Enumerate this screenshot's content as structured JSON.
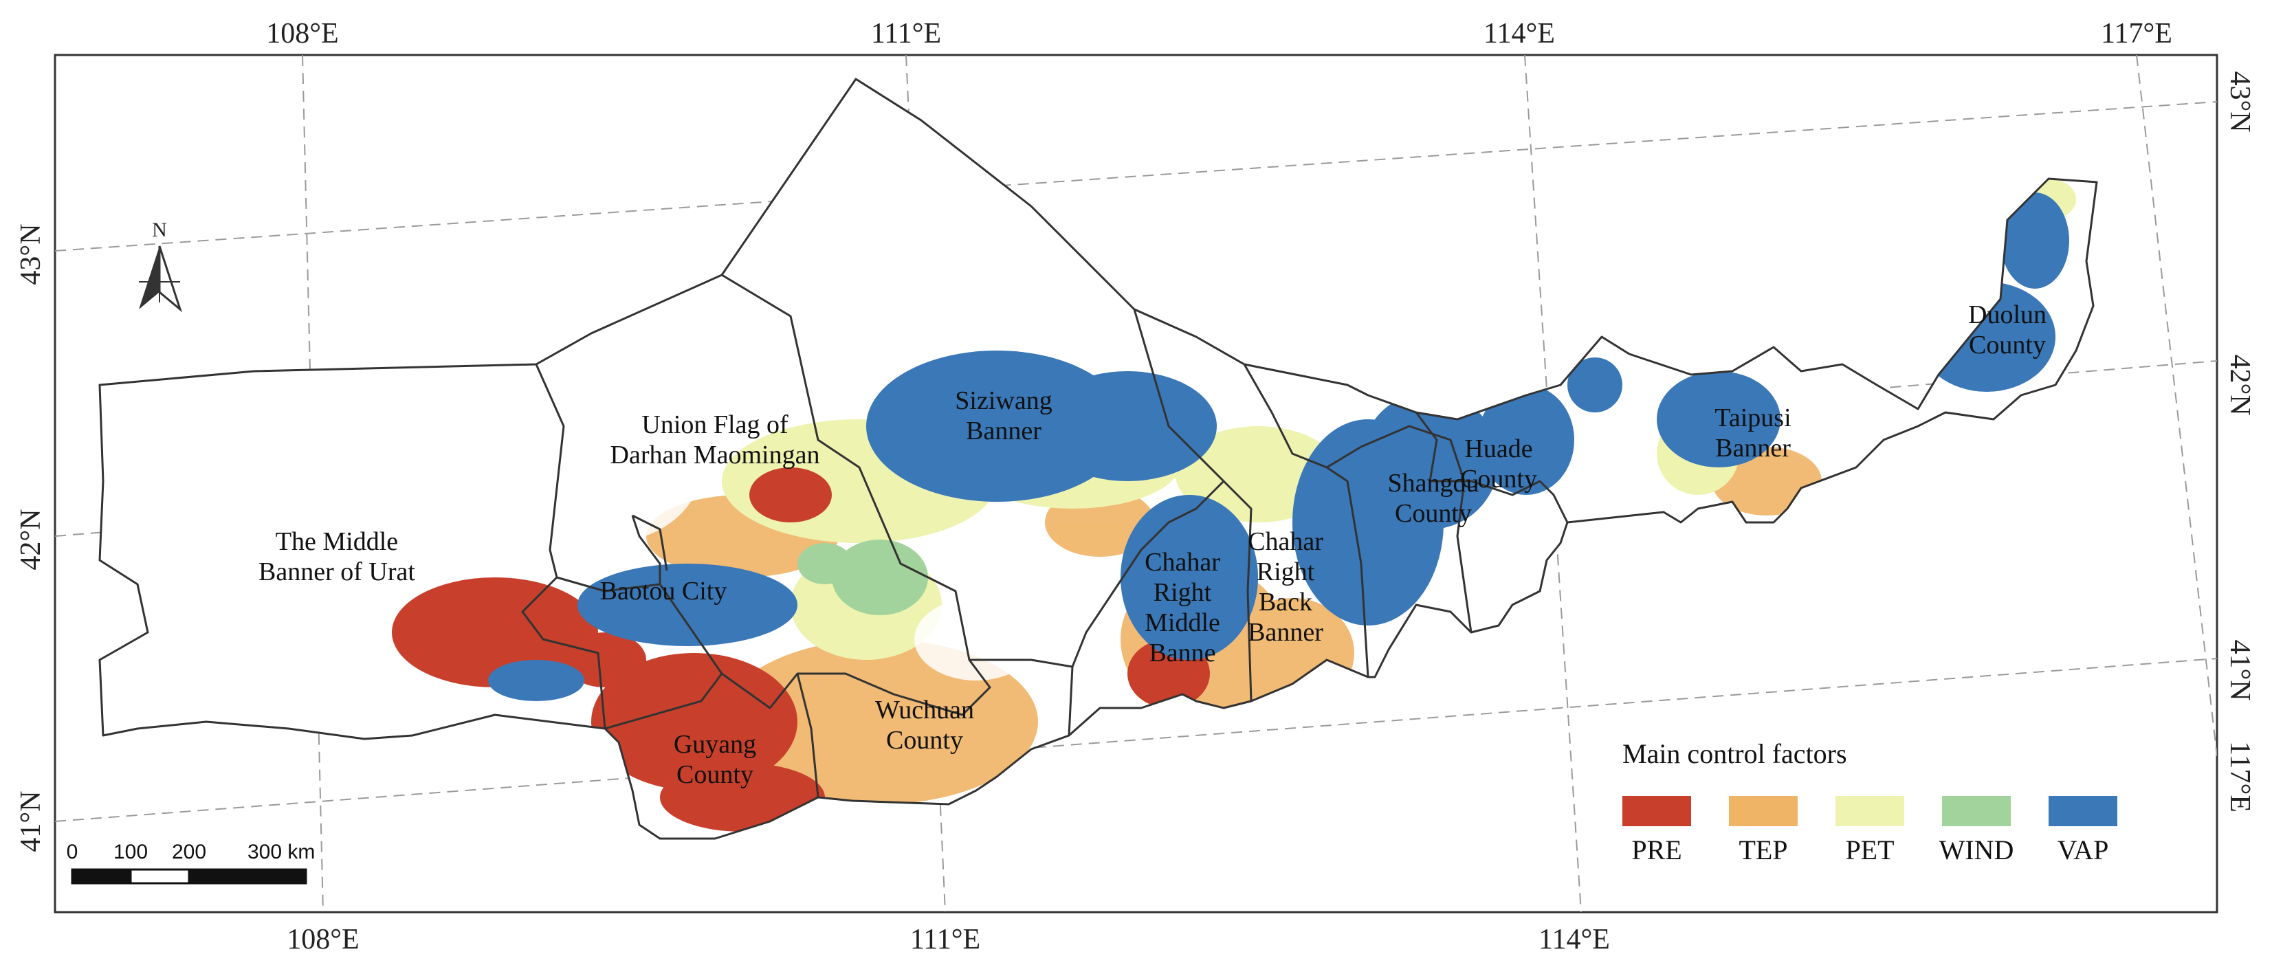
{
  "coordinates": {
    "top": [
      "108°E",
      "111°E",
      "114°E",
      "117°E"
    ],
    "bottom": [
      "108°E",
      "111°E",
      "114°E"
    ],
    "left": [
      "43°N",
      "42°N",
      "41°N"
    ],
    "right": [
      "43°N",
      "42°N",
      "41°N",
      "117°E"
    ]
  },
  "regions": [
    {
      "id": "urat",
      "lines": [
        "The Middle",
        "Banner of Urat"
      ]
    },
    {
      "id": "darhan",
      "lines": [
        "Union Flag of",
        "Darhan Maomingan"
      ]
    },
    {
      "id": "baotou",
      "lines": [
        "Baotou City"
      ]
    },
    {
      "id": "siziwang",
      "lines": [
        "Siziwang",
        "Banner"
      ]
    },
    {
      "id": "guyang",
      "lines": [
        "Guyang",
        "County"
      ]
    },
    {
      "id": "wuchuan",
      "lines": [
        "Wuchuan",
        "County"
      ]
    },
    {
      "id": "chahar-middle",
      "lines": [
        "Chahar",
        "Right",
        "Middle",
        "Banne"
      ]
    },
    {
      "id": "chahar-back",
      "lines": [
        "Chahar",
        "Right",
        "Back",
        "Banner"
      ]
    },
    {
      "id": "shangdu",
      "lines": [
        "Shangdu",
        "County"
      ]
    },
    {
      "id": "huade",
      "lines": [
        "Huade",
        "County"
      ]
    },
    {
      "id": "taipusi",
      "lines": [
        "Taipusi",
        "Banner"
      ]
    },
    {
      "id": "duolun",
      "lines": [
        "Duolun",
        "County"
      ]
    }
  ],
  "legend": {
    "title": "Main control factors",
    "items": [
      {
        "label": "PRE",
        "color": "#c8402c"
      },
      {
        "label": "TEP",
        "color": "#f0b466"
      },
      {
        "label": "PET",
        "color": "#eef3b0"
      },
      {
        "label": "WIND",
        "color": "#a3d39c"
      },
      {
        "label": "VAP",
        "color": "#3a78b8"
      }
    ]
  },
  "scale_bar": {
    "ticks": [
      "0",
      "100",
      "200",
      "300 km"
    ]
  },
  "north_arrow": {
    "label": "N",
    "icon": "north-arrow-icon"
  }
}
